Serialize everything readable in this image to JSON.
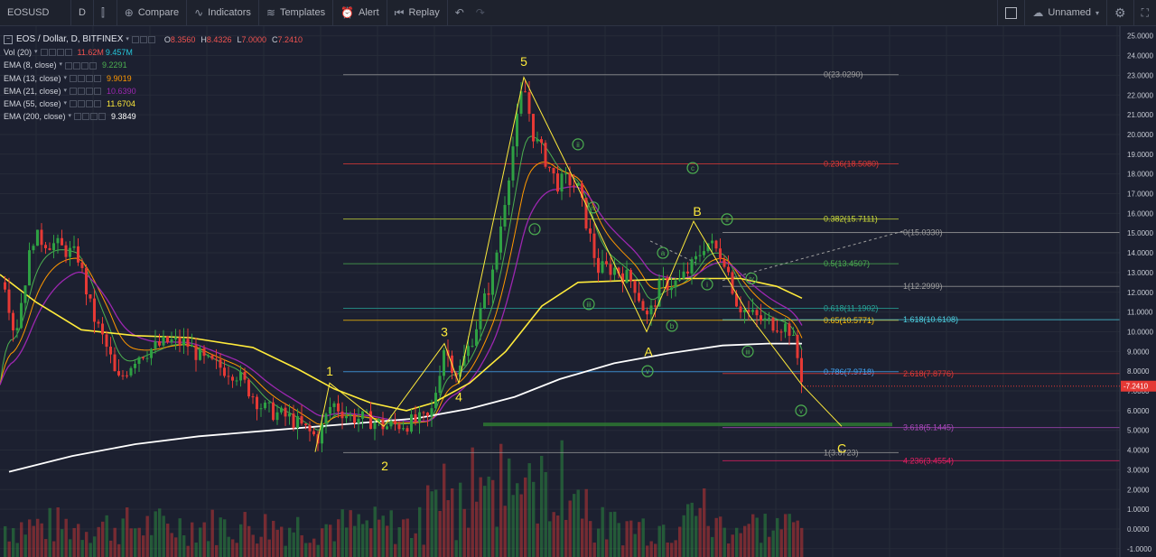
{
  "toolbar": {
    "symbol": "EOSUSD",
    "interval": "D",
    "compare": "Compare",
    "indicators": "Indicators",
    "templates": "Templates",
    "alert": "Alert",
    "replay": "Replay",
    "layout_name": "Unnamed"
  },
  "legend": {
    "title": "EOS / Dollar, D, BITFINEX",
    "ohlc": [
      {
        "key": "O",
        "value": "8.3560"
      },
      {
        "key": "H",
        "value": "8.4326"
      },
      {
        "key": "L",
        "value": "7.0000"
      },
      {
        "key": "C",
        "value": "7.2410"
      }
    ],
    "studies": [
      {
        "label": "Vol (20)",
        "values": [
          {
            "v": "11.62M",
            "color": "#ef5350"
          },
          {
            "v": "9.457M",
            "color": "#26c6da"
          }
        ]
      },
      {
        "label": "EMA (8, close)",
        "values": [
          {
            "v": "9.2291",
            "color": "#4caf50"
          }
        ]
      },
      {
        "label": "EMA (13, close)",
        "values": [
          {
            "v": "9.9019",
            "color": "#ff9800"
          }
        ]
      },
      {
        "label": "EMA (21, close)",
        "values": [
          {
            "v": "10.6390",
            "color": "#9c27b0"
          }
        ]
      },
      {
        "label": "EMA (55, close)",
        "values": [
          {
            "v": "11.6704",
            "color": "#ffeb3b"
          }
        ]
      },
      {
        "label": "EMA (200, close)",
        "values": [
          {
            "v": "9.3849",
            "color": "#ffffff"
          }
        ]
      }
    ]
  },
  "colors": {
    "up": "#26a69a",
    "up_body": "#2ea043",
    "down": "#e53935",
    "bg": "#1c2030",
    "grid": "#2a2f3d"
  },
  "price_axis": {
    "labels": [
      "25.0000",
      "24.0000",
      "23.0000",
      "22.0000",
      "21.0000",
      "20.0000",
      "19.0000",
      "18.0000",
      "17.0000",
      "16.0000",
      "15.0000",
      "14.0000",
      "13.0000",
      "12.0000",
      "11.0000",
      "10.0000",
      "9.0000",
      "8.0000",
      "7.0000",
      "6.0000",
      "5.0000",
      "4.0000",
      "3.0000",
      "2.0000",
      "1.0000",
      "0.0000",
      "-1.0000"
    ],
    "current_price": "7.2410"
  },
  "fib_levels": [
    {
      "text": "0(23.0290)",
      "color": "#9e9e9e"
    },
    {
      "text": "0.236(18.5080)",
      "color": "#e53935"
    },
    {
      "text": "0.382(15.7111)",
      "color": "#cddc39"
    },
    {
      "text": "0.5(13.4507)",
      "color": "#4caf50"
    },
    {
      "text": "0.618(11.1902)",
      "color": "#26a69a"
    },
    {
      "text": "0.65(10.5771)",
      "color": "#ffc107"
    },
    {
      "text": "0.786(7.9718)",
      "color": "#42a5f5"
    },
    {
      "text": "1(3.8723)",
      "color": "#9e9e9e"
    },
    {
      "text": "0(15.0330)",
      "color": "#9e9e9e"
    },
    {
      "text": "1(12.2999)",
      "color": "#9e9e9e"
    },
    {
      "text": "1.618(10.6108)",
      "color": "#4dd0e1"
    },
    {
      "text": "2.618(7.8776)",
      "color": "#e53935"
    },
    {
      "text": "3.618(5.1445)",
      "color": "#ab47bc"
    },
    {
      "text": "4.236(3.4554)",
      "color": "#e91e63"
    }
  ],
  "wave_labels": [
    {
      "text": "1",
      "color": "#ffeb3b"
    },
    {
      "text": "2",
      "color": "#ffeb3b"
    },
    {
      "text": "3",
      "color": "#ffeb3b"
    },
    {
      "text": "4",
      "color": "#ffeb3b"
    },
    {
      "text": "5",
      "color": "#ffeb3b"
    },
    {
      "text": "A",
      "color": "#ffeb3b"
    },
    {
      "text": "B",
      "color": "#ffeb3b"
    },
    {
      "text": "C",
      "color": "#ffeb3b"
    },
    {
      "text": "ii",
      "color": "#4caf50"
    },
    {
      "text": "i",
      "color": "#4caf50"
    },
    {
      "text": "iv",
      "color": "#4caf50"
    },
    {
      "text": "iii",
      "color": "#4caf50"
    },
    {
      "text": "v",
      "color": "#4caf50"
    },
    {
      "text": "a",
      "color": "#4caf50"
    },
    {
      "text": "b",
      "color": "#4caf50"
    },
    {
      "text": "c",
      "color": "#4caf50"
    },
    {
      "text": "ii",
      "color": "#4caf50"
    },
    {
      "text": "i",
      "color": "#4caf50"
    },
    {
      "text": "iv",
      "color": "#4caf50"
    },
    {
      "text": "iii",
      "color": "#4caf50"
    },
    {
      "text": "v",
      "color": "#4caf50"
    }
  ]
}
